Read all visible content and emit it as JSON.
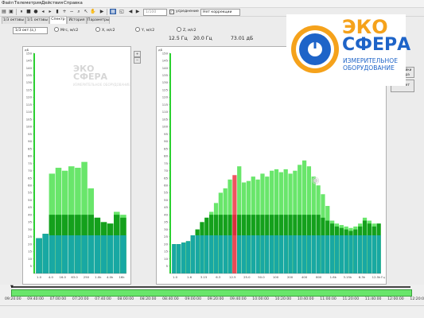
{
  "menu": [
    "Файл",
    "Телеметрия",
    "Действия",
    "Справка"
  ],
  "toolbar": {
    "time_field": "1/100",
    "averaging_label": "усреднение",
    "correction_select": "Нет коррекции"
  },
  "tabs": [
    "1/3 октавы",
    "1/1 октавы",
    "Спектр",
    "История",
    "Параметры"
  ],
  "active_tab": 2,
  "octave_select": "1/3 окт.(z,)",
  "channels": [
    "Мгс, м/с2",
    "X, м/с2",
    "Y, м/с2",
    "Z, м/с2"
  ],
  "readouts": {
    "freq_cursor": "12.5 Гц",
    "freq_band": "20.0 Гц",
    "level": "73.01 дБ"
  },
  "side_buttons": [
    "Настройки прибора",
    "Е отчет"
  ],
  "logo": {
    "line1": "ЭКО",
    "line2": "СФЕРА",
    "line3": "ИЗМЕРИТЕЛЬНОЕ",
    "line4": "ОБОРУДОВАНИЕ"
  },
  "watermark": {
    "line1": "ЭКО",
    "line2": "СФЕРА",
    "line3": "ИЗМЕРИТЕЛЬНОЕ ОБОРУДОВАНИЕ"
  },
  "colors": {
    "band_top": "#69e66b",
    "band_mid": "#14a01c",
    "band_base": "#18a8a3",
    "highlight": "#ee5560",
    "axis_left": "#2ad12f"
  },
  "timeline": {
    "labels": [
      "09:20:00",
      "09:40:00",
      "07:00:00",
      "07:20:00",
      "07:40:00",
      "08:00:00",
      "08:20:00",
      "08:40:00",
      "09:00:00",
      "09:20:00",
      "09:40:00",
      "10:00:00",
      "10:20:00",
      "10:40:00",
      "11:00:00",
      "11:20:00",
      "11:40:00",
      "12:00:00",
      "12:20:00"
    ]
  },
  "chart_data": [
    {
      "type": "bar",
      "title": "",
      "xlabel": "Гц",
      "ylabel": "дБ",
      "ylim": [
        0,
        150
      ],
      "y_ticks": [
        "150",
        "145",
        "140",
        "135",
        "130",
        "125",
        "120",
        "115",
        "110",
        "105",
        "100",
        "95",
        "90",
        "85",
        "80",
        "75",
        "70",
        "65",
        "60",
        "55",
        "50",
        "45",
        "40",
        "35",
        "30",
        "25",
        "20",
        "15",
        "10",
        "5"
      ],
      "x_ticks": [
        "1.0",
        "4.0",
        "16.0",
        "63.0",
        "250",
        "1.0k",
        "4.0k",
        "16k"
      ],
      "series": [
        {
          "values": [
            24,
            27,
            68,
            72,
            70,
            73,
            72,
            76,
            58,
            38,
            35,
            34,
            42,
            40
          ]
        },
        {
          "values": [
            24,
            27,
            40,
            40,
            40,
            40,
            40,
            40,
            40,
            38,
            35,
            34,
            40,
            38
          ]
        },
        {
          "values": [
            24,
            27,
            26,
            26,
            26,
            26,
            26,
            26,
            26,
            26,
            26,
            26,
            26,
            26
          ]
        }
      ]
    },
    {
      "type": "bar",
      "title": "",
      "xlabel": "Гц",
      "ylabel": "дБ",
      "ylim": [
        0,
        150
      ],
      "y_ticks": [
        "150",
        "145",
        "140",
        "135",
        "130",
        "125",
        "120",
        "115",
        "110",
        "105",
        "100",
        "95",
        "90",
        "85",
        "80",
        "75",
        "70",
        "65",
        "60",
        "55",
        "50",
        "45",
        "40",
        "35",
        "30",
        "25",
        "20",
        "15",
        "10",
        "5"
      ],
      "x_ticks": [
        "1.0",
        "1.6",
        "3.15",
        "6.3",
        "12.5",
        "25.0",
        "50.0",
        "100",
        "200",
        "400",
        "800",
        "1.6k",
        "3.15k",
        "6.3k",
        "12.5k"
      ],
      "highlight_index": 13,
      "series": [
        {
          "values": [
            20,
            20,
            21,
            22,
            26,
            30,
            35,
            38,
            42,
            48,
            55,
            58,
            64,
            67,
            73,
            62,
            63,
            66,
            64,
            68,
            66,
            70,
            71,
            69,
            71,
            68,
            70,
            74,
            77,
            73,
            66,
            60,
            54,
            46,
            36,
            34,
            33,
            32,
            31,
            32,
            34,
            38,
            36,
            34,
            34
          ]
        },
        {
          "values": [
            20,
            20,
            21,
            22,
            26,
            30,
            35,
            38,
            40,
            40,
            40,
            40,
            40,
            40,
            40,
            40,
            40,
            40,
            40,
            40,
            40,
            40,
            40,
            40,
            40,
            40,
            40,
            40,
            40,
            40,
            40,
            40,
            38,
            36,
            34,
            32,
            31,
            30,
            29,
            30,
            32,
            36,
            34,
            32,
            34
          ]
        },
        {
          "values": [
            20,
            20,
            21,
            22,
            26,
            26,
            26,
            26,
            26,
            26,
            26,
            26,
            26,
            26,
            26,
            26,
            26,
            26,
            26,
            26,
            26,
            26,
            26,
            26,
            26,
            26,
            26,
            26,
            26,
            26,
            26,
            26,
            26,
            26,
            26,
            26,
            26,
            26,
            26,
            26,
            26,
            26,
            26,
            26,
            26
          ]
        }
      ]
    }
  ]
}
